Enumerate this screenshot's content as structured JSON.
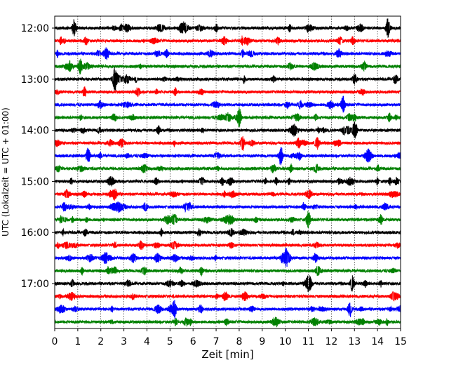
{
  "chart_data": {
    "type": "line",
    "subtype": "helicorder",
    "xlabel": "Zeit  [min]",
    "ylabel": "UTC (Lokalzeit = UTC + 01:00)",
    "x_ticks": [
      "0",
      "1",
      "2",
      "3",
      "4",
      "5",
      "6",
      "7",
      "8",
      "9",
      "10",
      "11",
      "12",
      "13",
      "14",
      "15"
    ],
    "xlim": [
      0,
      15
    ],
    "y_ticks": [
      "12:00",
      "13:00",
      "14:00",
      "15:00",
      "16:00",
      "17:00"
    ],
    "trace_interval_minutes": 15,
    "trace_count": 24,
    "trace_colors": [
      "#000000",
      "#ff0000",
      "#0000ff",
      "#008000"
    ],
    "vertical_grid": true,
    "grid_style": "dotted",
    "notable_spikes_minutes": [
      {
        "trace": 0,
        "x": 0.85
      },
      {
        "trace": 0,
        "x": 14.45
      },
      {
        "trace": 3,
        "x": 1.1
      },
      {
        "trace": 4,
        "x": 2.6
      },
      {
        "trace": 6,
        "x": 12.5
      },
      {
        "trace": 7,
        "x": 8.0
      },
      {
        "trace": 8,
        "x": 13.0
      },
      {
        "trace": 9,
        "x": 8.15
      },
      {
        "trace": 10,
        "x": 9.8
      },
      {
        "trace": 10,
        "x": 1.45
      },
      {
        "trace": 15,
        "x": 11.0
      },
      {
        "trace": 18,
        "x": 10.0
      },
      {
        "trace": 20,
        "x": 12.9
      },
      {
        "trace": 22,
        "x": 12.8
      },
      {
        "trace": 22,
        "x": 5.2
      }
    ]
  }
}
